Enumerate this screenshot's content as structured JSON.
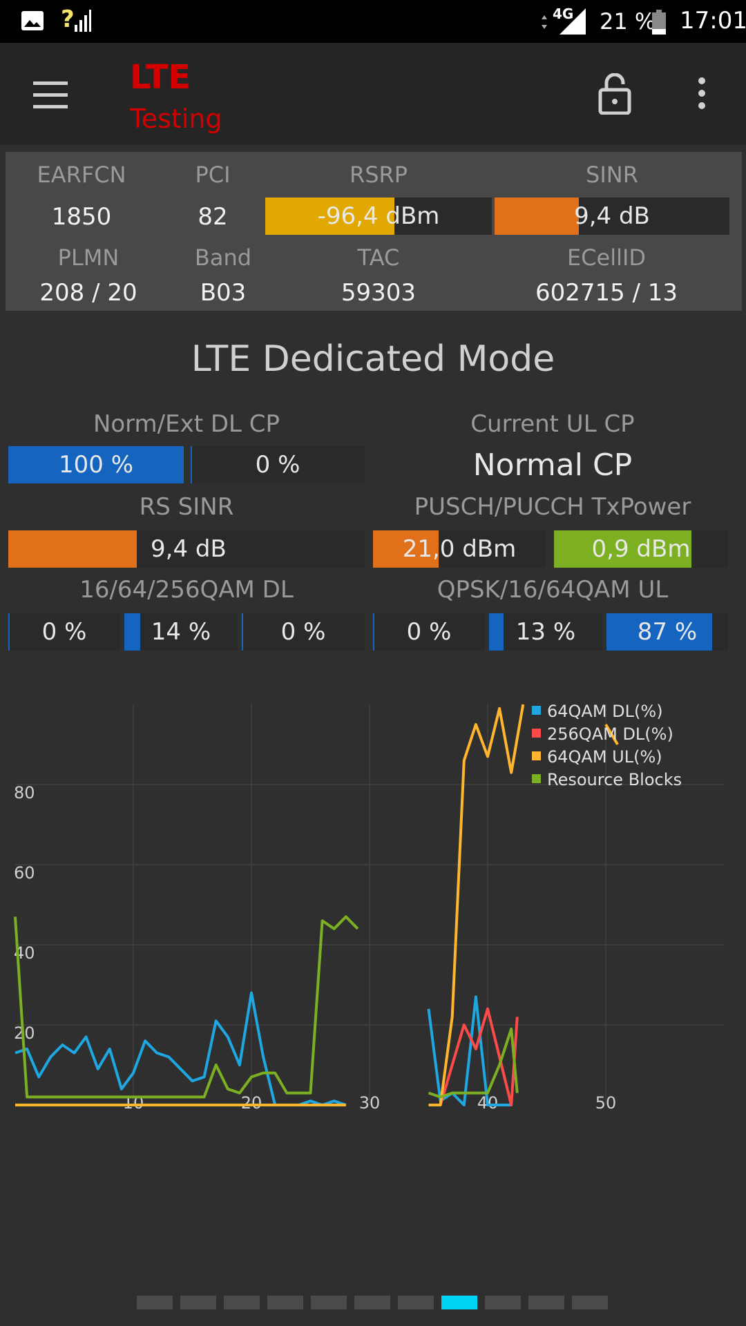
{
  "status_bar": {
    "network_label": "4G",
    "battery_percent": "21 %",
    "time": "17:01",
    "signal_unknown": "?"
  },
  "app_bar": {
    "title": "LTE",
    "subtitle": "Testing",
    "icons": [
      "menu-icon",
      "lock-open-icon",
      "more-vert-icon"
    ]
  },
  "cell_info": {
    "earfcn_label": "EARFCN",
    "earfcn": "1850",
    "pci_label": "PCI",
    "pci": "82",
    "rsrp_label": "RSRP",
    "rsrp": "-96,4 dBm",
    "rsrp_level": 0.57,
    "sinr_label": "SINR",
    "sinr": "9,4 dB",
    "sinr_level": 0.36,
    "plmn_label": "PLMN",
    "plmn": "208 / 20",
    "band_label": "Band",
    "band": "B03",
    "tac_label": "TAC",
    "tac": "59303",
    "ecellid_label": "ECellID",
    "ecellid": "602715 / 13"
  },
  "dedicated": {
    "title": "LTE Dedicated Mode",
    "dl_cp_label": "Norm/Ext DL CP",
    "dl_cp_normal": "100 %",
    "dl_cp_normal_level": 1.0,
    "dl_cp_ext": "0 %",
    "dl_cp_ext_level": 0.0,
    "ul_cp_label": "Current UL CP",
    "ul_cp_value": "Normal CP",
    "rs_sinr_label": "RS SINR",
    "rs_sinr": "9,4 dB",
    "rs_sinr_level": 0.36,
    "txpower_label": "PUSCH/PUCCH TxPower",
    "pusch_power": "21,0 dBm",
    "pusch_level": 0.38,
    "pucch_power": "0,9 dBm",
    "pucch_level": 0.79,
    "qam_dl_label": "16/64/256QAM DL",
    "qam16_dl": "0 %",
    "qam16_dl_level": 0.0,
    "qam64_dl": "14 %",
    "qam64_dl_level": 0.14,
    "qam256_dl": "0 %",
    "qam256_dl_level": 0.0,
    "qam_ul_label": "QPSK/16/64QAM UL",
    "qpsk_ul": "0 %",
    "qpsk_ul_level": 0.0,
    "qam16_ul": "13 %",
    "qam16_ul_level": 0.13,
    "qam64_ul": "87 %",
    "qam64_ul_level": 0.87
  },
  "colors": {
    "rsrp_fill": "#e0a800",
    "orange_fill": "#e0701a",
    "blue_fill": "#1565c0",
    "green_fill": "#7cb022",
    "accent": "#00d4f5",
    "title_red": "#d40000"
  },
  "chart_data": {
    "type": "line",
    "xlim": [
      0,
      60
    ],
    "ylim": [
      0,
      100
    ],
    "x_ticks": [
      "10",
      "20",
      "30",
      "40",
      "50"
    ],
    "y_ticks": [
      "20",
      "40",
      "60",
      "80"
    ],
    "grid": true,
    "legend_position": "top-right",
    "series": [
      {
        "name": "64QAM DL(%)",
        "color": "#1ea7e0",
        "segments": [
          [
            [
              0,
              13
            ],
            [
              1,
              14
            ],
            [
              2,
              7
            ],
            [
              3,
              12
            ],
            [
              4,
              15
            ],
            [
              5,
              13
            ],
            [
              6,
              17
            ],
            [
              7,
              9
            ],
            [
              8,
              14
            ],
            [
              9,
              4
            ],
            [
              10,
              8
            ],
            [
              11,
              16
            ],
            [
              12,
              13
            ],
            [
              13,
              12
            ],
            [
              14,
              9
            ],
            [
              15,
              6
            ],
            [
              16,
              7
            ],
            [
              17,
              21
            ],
            [
              18,
              17
            ],
            [
              19,
              10
            ],
            [
              20,
              28
            ],
            [
              21,
              12
            ],
            [
              22,
              0
            ],
            [
              23,
              0
            ],
            [
              24,
              0
            ],
            [
              25,
              1
            ],
            [
              26,
              0
            ],
            [
              27,
              1
            ],
            [
              28,
              0
            ]
          ],
          [
            [
              35,
              24
            ],
            [
              36,
              1
            ],
            [
              37,
              3
            ],
            [
              38,
              0
            ],
            [
              39,
              27
            ],
            [
              40,
              0
            ],
            [
              41,
              0
            ],
            [
              42,
              0
            ]
          ]
        ]
      },
      {
        "name": "256QAM DL(%)",
        "color": "#ff4a4a",
        "segments": [
          [
            [
              0,
              0
            ],
            [
              28,
              0
            ]
          ],
          [
            [
              35,
              0
            ],
            [
              36,
              0
            ],
            [
              37,
              10
            ],
            [
              38,
              20
            ],
            [
              39,
              14
            ],
            [
              40,
              24
            ],
            [
              41,
              12
            ],
            [
              42,
              0
            ],
            [
              42.5,
              22
            ]
          ]
        ]
      },
      {
        "name": "64QAM UL(%)",
        "color": "#ffb62e",
        "segments": [
          [
            [
              0,
              0
            ],
            [
              28,
              0
            ]
          ],
          [
            [
              35,
              0
            ],
            [
              36,
              0
            ],
            [
              37,
              22
            ],
            [
              38,
              86
            ],
            [
              39,
              95
            ],
            [
              40,
              87
            ],
            [
              41,
              99
            ],
            [
              42,
              83
            ],
            [
              43,
              100
            ]
          ],
          [
            [
              50,
              95
            ],
            [
              51,
              90
            ]
          ]
        ]
      },
      {
        "name": "Resource Blocks",
        "color": "#7cb022",
        "segments": [
          [
            [
              0,
              47
            ],
            [
              1,
              2
            ],
            [
              2,
              2
            ],
            [
              5,
              2
            ],
            [
              10,
              2
            ],
            [
              15,
              2
            ],
            [
              16,
              2
            ],
            [
              17,
              10
            ],
            [
              18,
              4
            ],
            [
              19,
              3
            ],
            [
              20,
              7
            ],
            [
              21,
              8
            ],
            [
              22,
              8
            ],
            [
              23,
              3
            ],
            [
              24,
              3
            ],
            [
              25,
              3
            ],
            [
              26,
              46
            ],
            [
              27,
              44
            ],
            [
              28,
              47
            ],
            [
              29,
              44
            ]
          ],
          [
            [
              35,
              3
            ],
            [
              36,
              2
            ],
            [
              37,
              3
            ],
            [
              38,
              3
            ],
            [
              39,
              3
            ],
            [
              40,
              3
            ],
            [
              41,
              10
            ],
            [
              42,
              19
            ],
            [
              42.5,
              3
            ]
          ]
        ]
      }
    ]
  },
  "pager": {
    "count": 11,
    "active_index": 7
  }
}
